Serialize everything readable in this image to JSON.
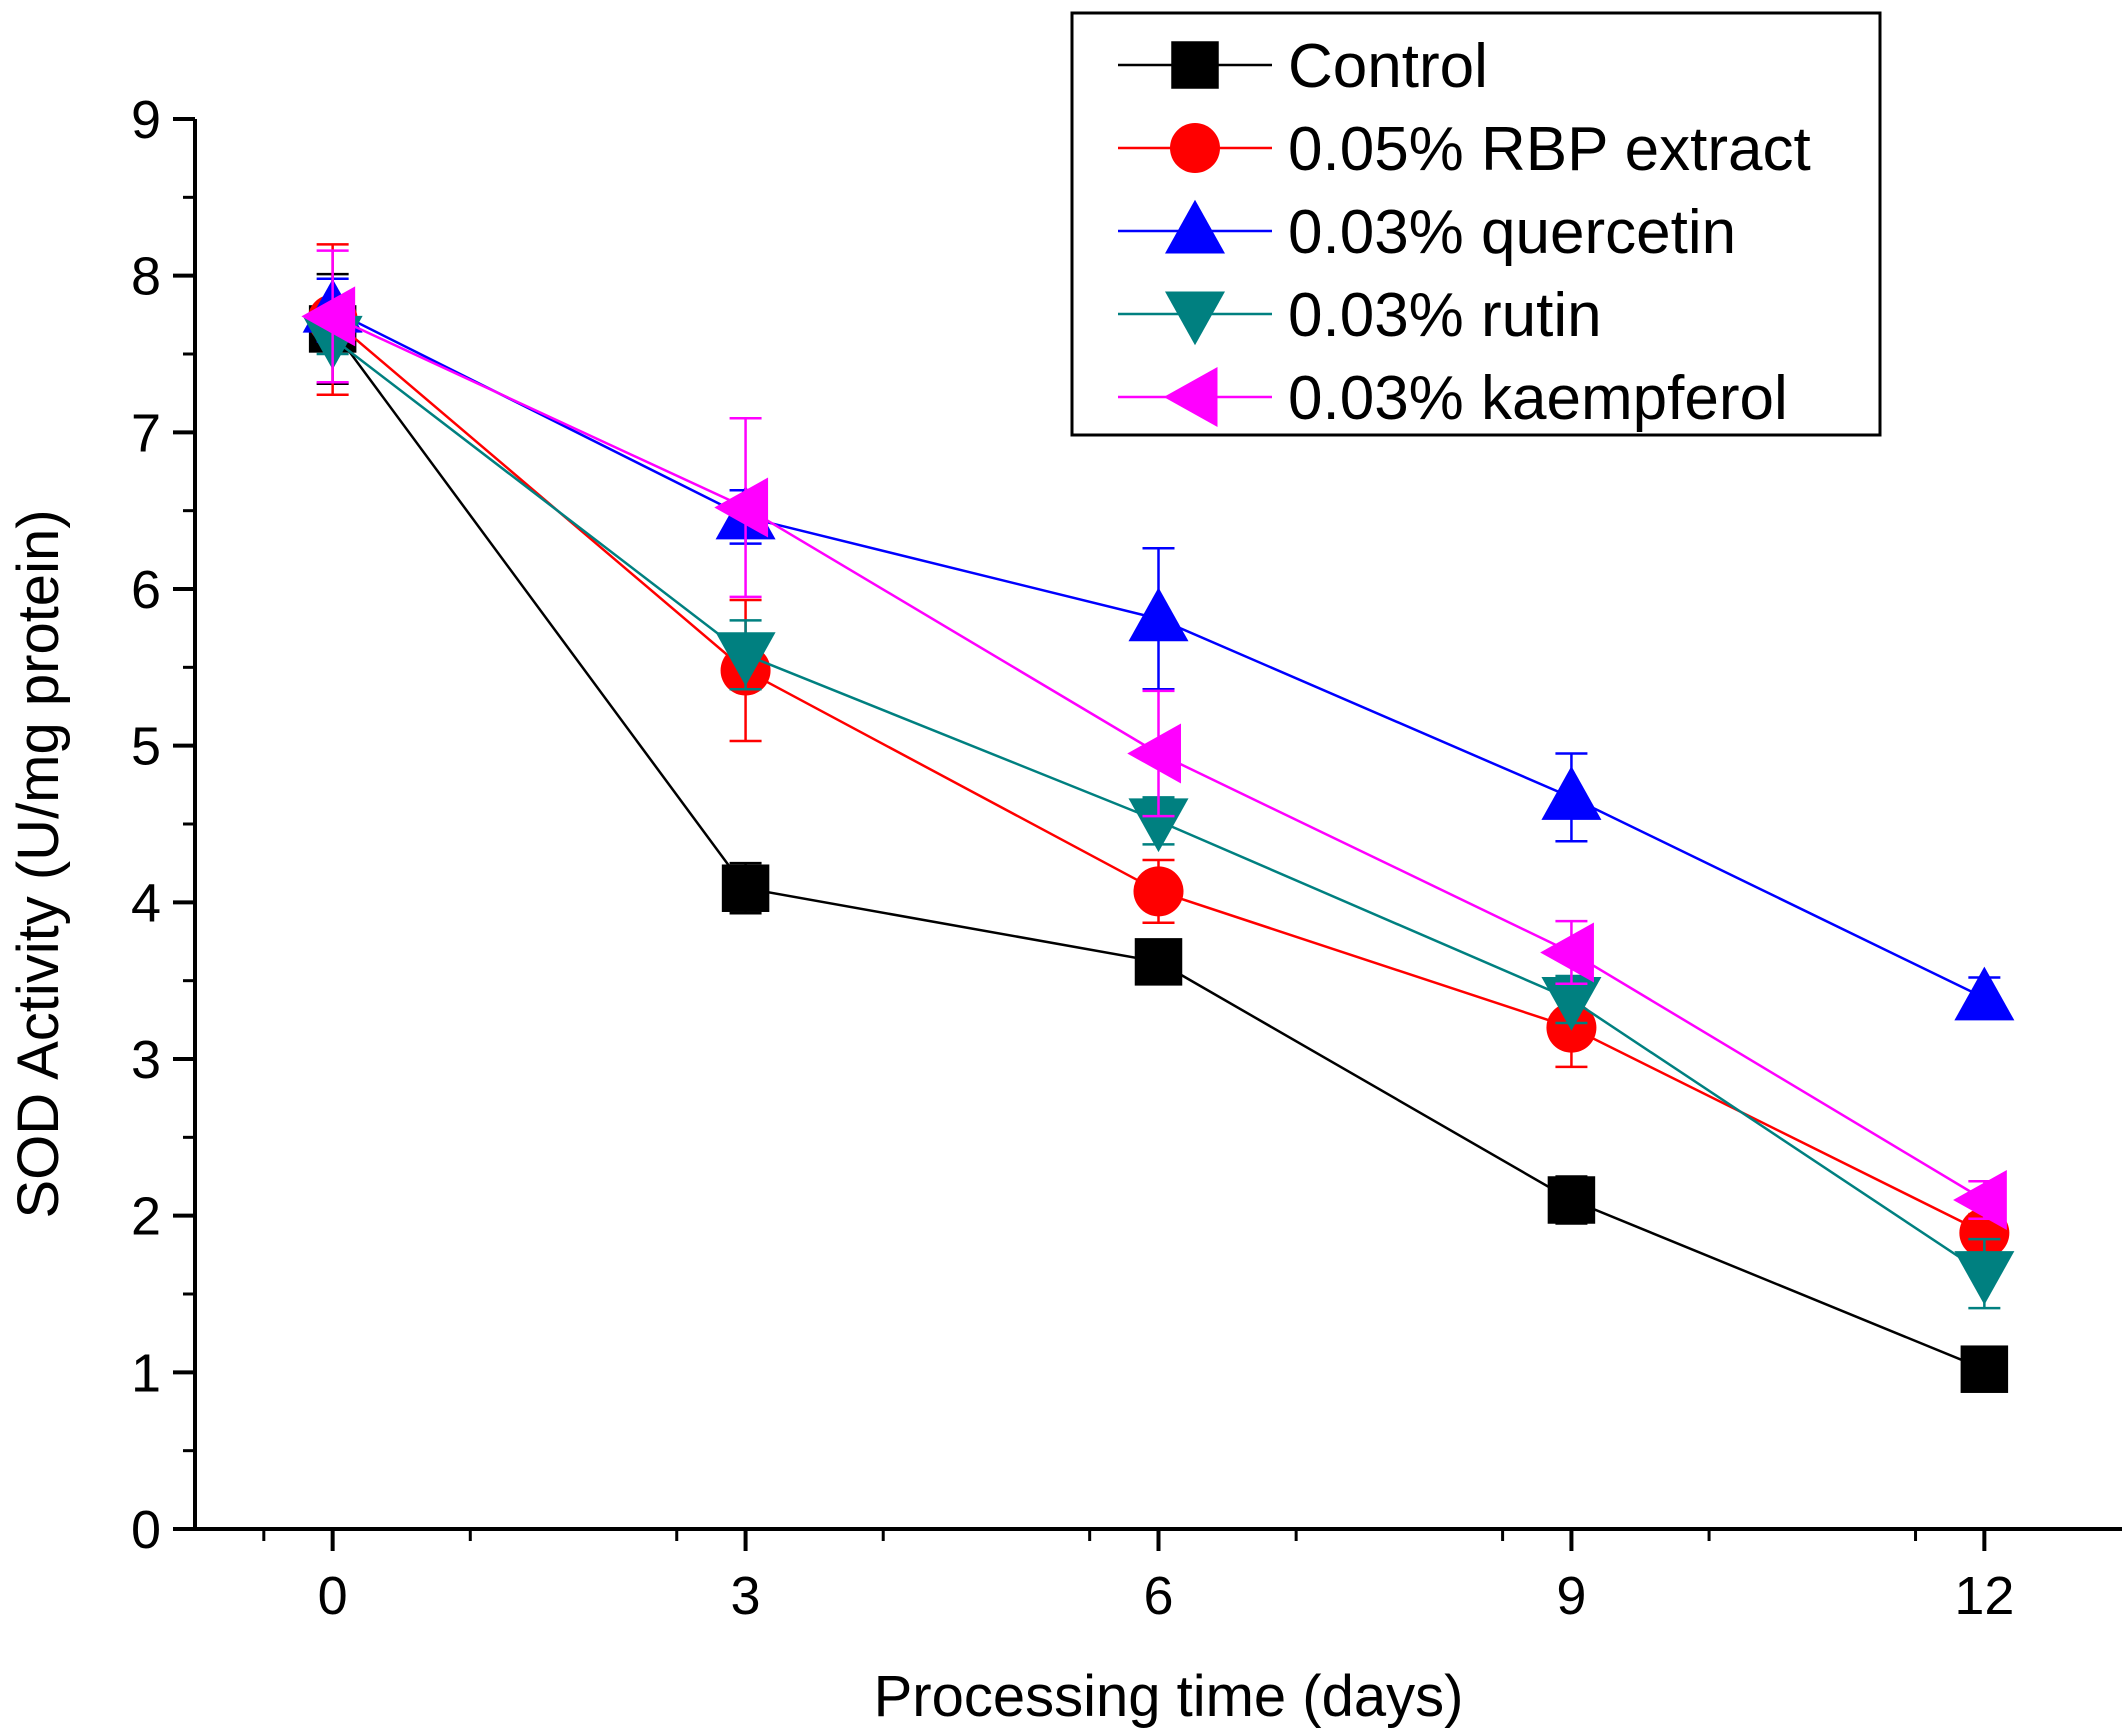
{
  "chart_data": {
    "type": "line",
    "xlabel": "Processing time (days)",
    "ylabel": "SOD Activity (U/mg protein)",
    "xlim": [
      -1,
      13
    ],
    "ylim": [
      0,
      9
    ],
    "x_ticks": [
      0,
      3,
      6,
      9,
      12
    ],
    "y_ticks": [
      0,
      1,
      2,
      3,
      4,
      5,
      6,
      7,
      8,
      9
    ],
    "x_tick_labels": [
      "0",
      "3",
      "6",
      "9",
      "12"
    ],
    "y_tick_labels": [
      "0",
      "1",
      "2",
      "3",
      "4",
      "5",
      "6",
      "7",
      "8",
      "9"
    ],
    "grid": false,
    "legend_position": "top-right",
    "x": [
      0,
      3,
      6,
      9,
      12
    ],
    "series": [
      {
        "name": "Control",
        "color": "#000000",
        "marker": "square",
        "values": [
          7.66,
          4.09,
          3.62,
          2.1,
          1.02
        ],
        "errors": [
          0.35,
          0.16,
          0.13,
          0.15,
          0.12
        ]
      },
      {
        "name": "0.05% RBP extract",
        "color": "#ff0000",
        "marker": "circle",
        "values": [
          7.72,
          5.48,
          4.07,
          3.2,
          1.89
        ],
        "errors": [
          0.48,
          0.45,
          0.2,
          0.25,
          0.12
        ]
      },
      {
        "name": "0.03% quercetin",
        "color": "#0000ff",
        "marker": "triangle-up",
        "values": [
          7.78,
          6.46,
          5.81,
          4.67,
          3.39
        ],
        "errors": [
          0.2,
          0.17,
          0.45,
          0.28,
          0.13
        ]
      },
      {
        "name": "0.03% rutin",
        "color": "#008080",
        "marker": "triangle-down",
        "values": [
          7.6,
          5.58,
          4.52,
          3.38,
          1.63
        ],
        "errors": [
          0.1,
          0.22,
          0.15,
          0.15,
          0.22
        ]
      },
      {
        "name": "0.03% kaempferol",
        "color": "#ff00ff",
        "marker": "triangle-left",
        "values": [
          7.74,
          6.52,
          4.95,
          3.68,
          2.1
        ],
        "errors": [
          0.42,
          0.57,
          0.4,
          0.2,
          0.12
        ]
      }
    ]
  }
}
